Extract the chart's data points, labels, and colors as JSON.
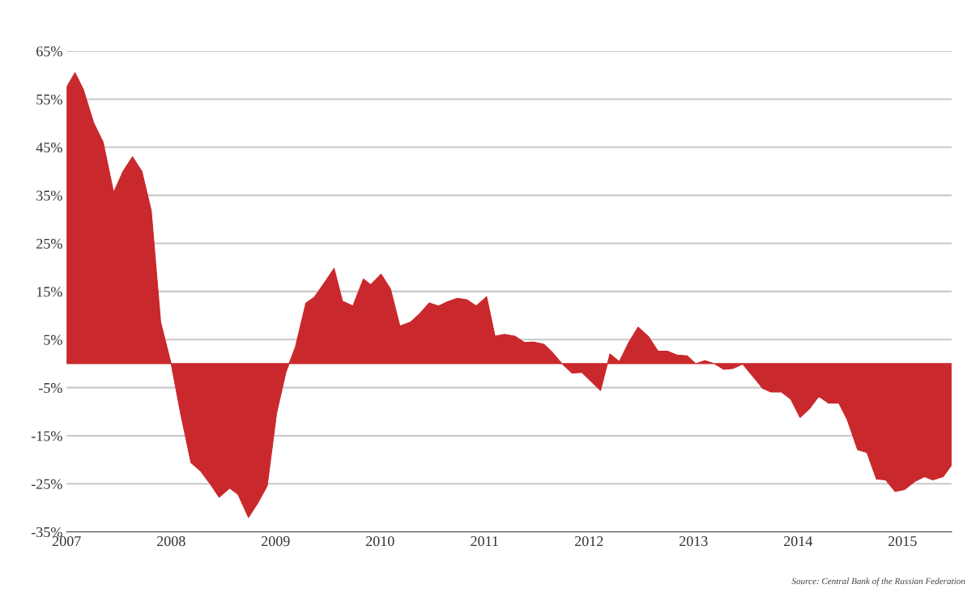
{
  "chart_data": {
    "type": "area",
    "x": [
      2007.0,
      2007.08,
      2007.16,
      2007.26,
      2007.35,
      2007.45,
      2007.54,
      2007.63,
      2007.72,
      2007.81,
      2007.9,
      2008.0,
      2008.09,
      2008.19,
      2008.28,
      2008.37,
      2008.46,
      2008.56,
      2008.64,
      2008.74,
      2008.83,
      2008.92,
      2009.01,
      2009.1,
      2009.19,
      2009.29,
      2009.37,
      2009.47,
      2009.56,
      2009.64,
      2009.74,
      2009.84,
      2009.91,
      2010.01,
      2010.1,
      2010.19,
      2010.29,
      2010.38,
      2010.47,
      2010.56,
      2010.65,
      2010.74,
      2010.83,
      2010.92,
      2011.02,
      2011.1,
      2011.19,
      2011.29,
      2011.38,
      2011.47,
      2011.57,
      2011.65,
      2011.74,
      2011.84,
      2011.93,
      2012.02,
      2012.11,
      2012.2,
      2012.29,
      2012.38,
      2012.47,
      2012.57,
      2012.66,
      2012.75,
      2012.84,
      2012.94,
      2013.02,
      2013.11,
      2013.2,
      2013.29,
      2013.38,
      2013.47,
      2013.57,
      2013.66,
      2013.74,
      2013.84,
      2013.93,
      2014.02,
      2014.11,
      2014.2,
      2014.29,
      2014.39,
      2014.47,
      2014.57,
      2014.66,
      2014.75,
      2014.84,
      2014.93,
      2015.02,
      2015.12,
      2015.21,
      2015.29,
      2015.39,
      2015.47
    ],
    "series": [
      {
        "color": "#c9282d",
        "values": [
          57.5,
          60.5,
          57,
          50,
          46,
          35.6,
          40,
          43,
          40,
          31.8,
          8.6,
          0,
          -10.3,
          -20.6,
          -22.3,
          -24.9,
          -27.8,
          -25.9,
          -27.2,
          -32,
          -29,
          -25.4,
          -10.3,
          -1.7,
          3.5,
          12.6,
          13.8,
          16.9,
          19.8,
          13,
          12,
          17.6,
          16.4,
          18.6,
          15.5,
          7.8,
          8.6,
          10.4,
          12.6,
          12,
          12.9,
          13.6,
          13.3,
          12,
          13.9,
          5.7,
          6.1,
          5.7,
          4.4,
          4.5,
          4,
          2.3,
          0,
          -2,
          -1.8,
          -3.7,
          -5.6,
          2,
          0.4,
          4.4,
          7.6,
          5.6,
          2.6,
          2.6,
          1.8,
          1.6,
          0,
          0.6,
          0,
          -1.2,
          -1,
          -0.1,
          -2.7,
          -5.1,
          -5.9,
          -5.9,
          -7.4,
          -11.2,
          -9.4,
          -6.8,
          -8.2,
          -8.2,
          -11.6,
          -17.9,
          -18.5,
          -24,
          -24.2,
          -26.6,
          -26.2,
          -24.5,
          -23.5,
          -24.2,
          -23.5,
          -21.1
        ]
      }
    ],
    "xlim": [
      2007.0,
      2015.47
    ],
    "xticks": [
      2007,
      2008,
      2009,
      2010,
      2011,
      2012,
      2013,
      2014,
      2015
    ],
    "ylim": [
      -35,
      65
    ],
    "yticks": [
      {
        "value": -35,
        "label": "-35%"
      },
      {
        "value": -25,
        "label": "-25%"
      },
      {
        "value": -15,
        "label": "-15%"
      },
      {
        "value": -5,
        "label": "-5%"
      },
      {
        "value": 5,
        "label": "5%"
      },
      {
        "value": 15,
        "label": "15%"
      },
      {
        "value": 25,
        "label": "25%"
      },
      {
        "value": 35,
        "label": "35%"
      },
      {
        "value": 45,
        "label": "45%"
      },
      {
        "value": 55,
        "label": "55%"
      },
      {
        "value": 65,
        "label": "65%"
      }
    ],
    "grid": "y",
    "annotations": [
      "Source: Central Bank of the Russian Federation"
    ]
  }
}
